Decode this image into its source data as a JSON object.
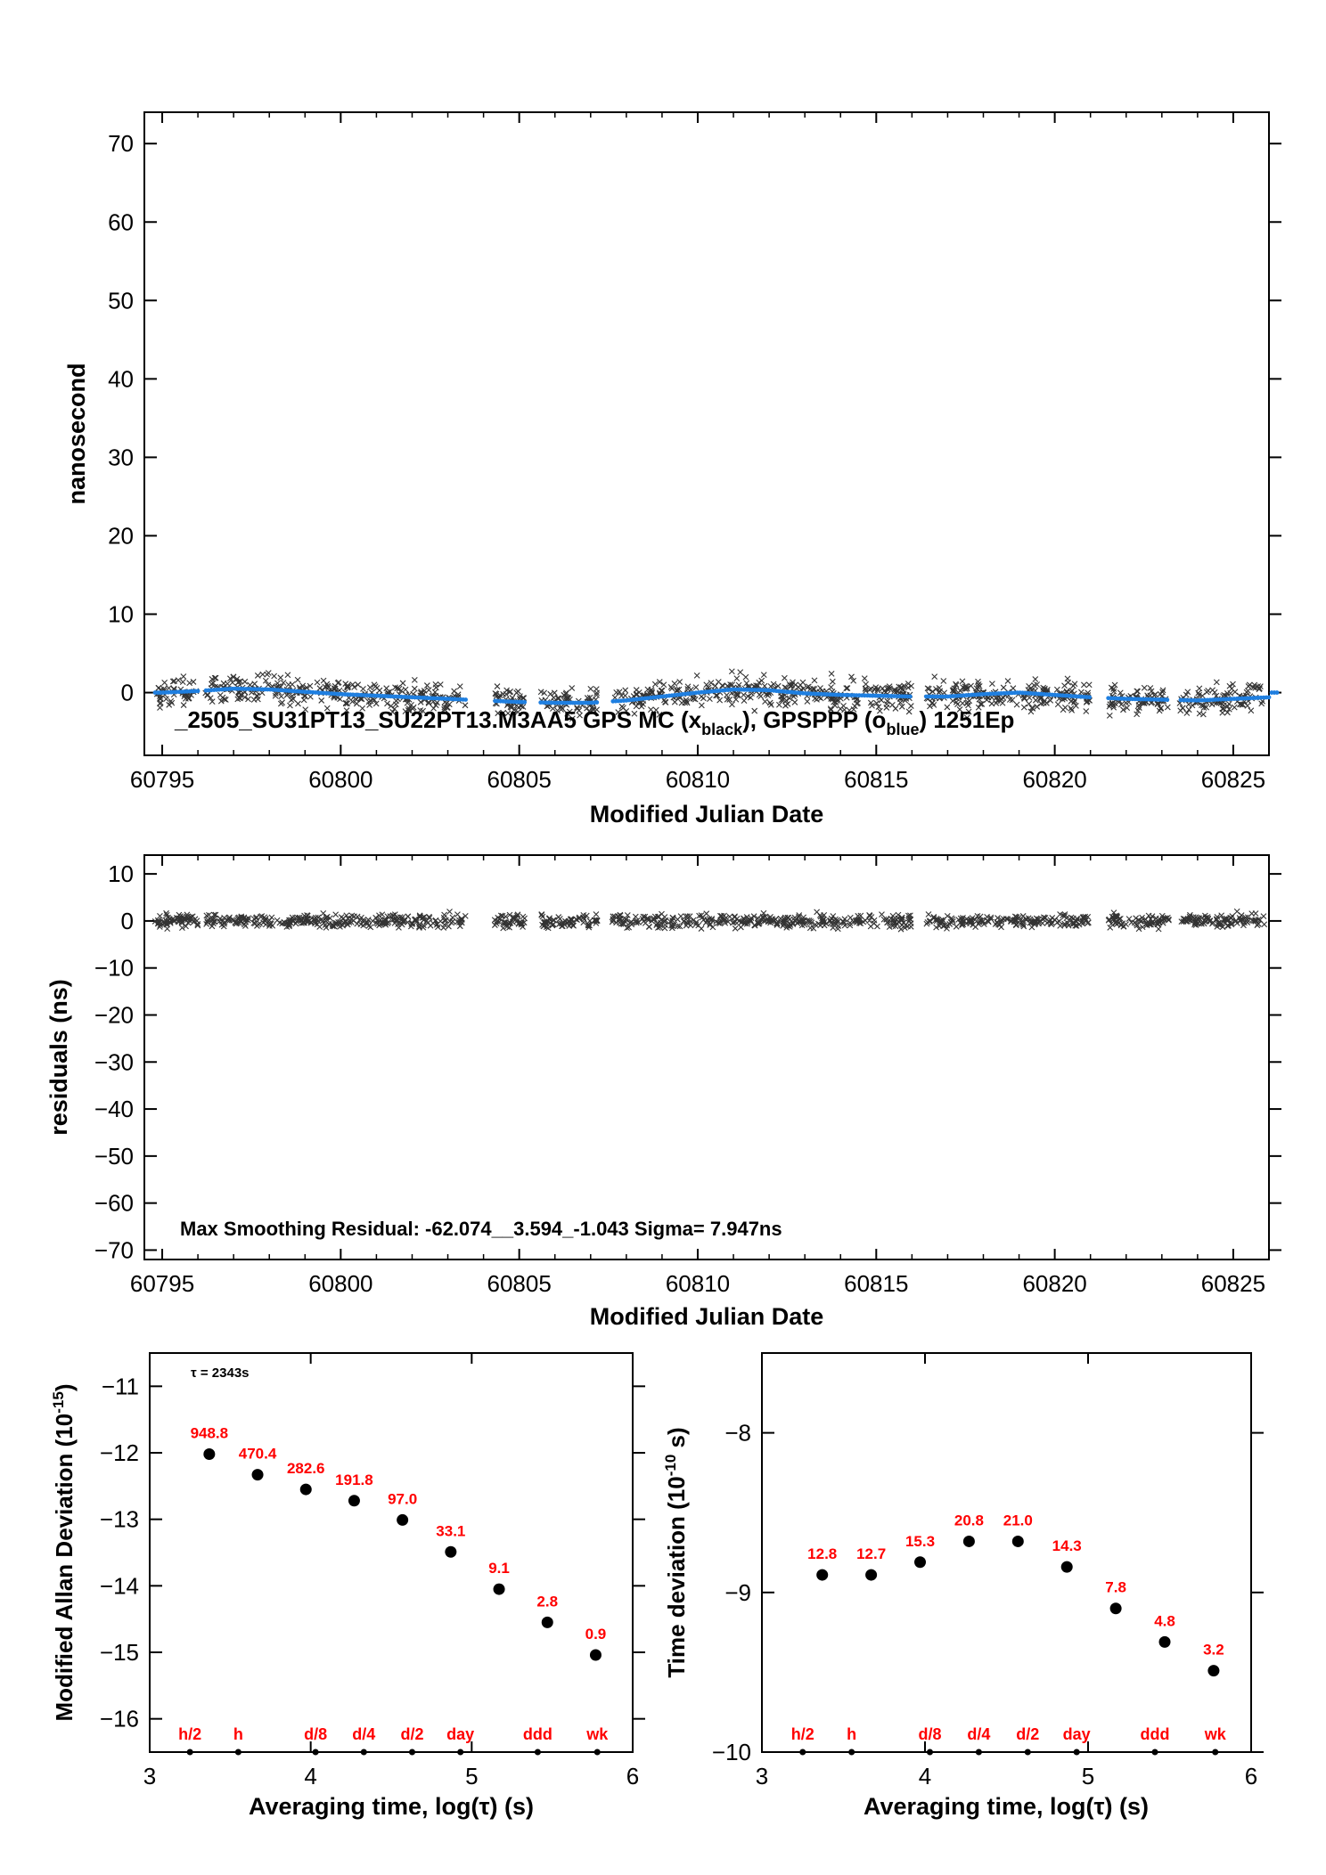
{
  "chart_data": [
    {
      "type": "scatter",
      "ylabel": "nanosecond",
      "xlabel": "Modified Julian Date",
      "xlim": [
        60794.5,
        60826
      ],
      "ylim": [
        -8,
        74
      ],
      "xticks": [
        60795,
        60800,
        60805,
        60810,
        60815,
        60820,
        60825
      ],
      "xtick_labels": [
        "60795",
        "60800",
        "60805",
        "60810",
        "60815",
        "60820",
        "60825"
      ],
      "yticks": [
        0,
        10,
        20,
        30,
        40,
        50,
        60,
        70
      ],
      "ytick_labels": [
        "0",
        "10",
        "20",
        "30",
        "40",
        "50",
        "60",
        "70"
      ],
      "annotation": {
        "main": "_2505_SU31PT13_SU22PT13.M3AA5    GPS MC (x",
        "sub1": "black",
        "mid": "),  GPSPPP (o",
        "sub2": "blue",
        "end": ")  1251Ep"
      },
      "series": [
        {
          "marker": "x",
          "color": "#000000",
          "values_by_day": "scatter of ~1251 epochs, values mostly between -3 and +4 ns"
        },
        {
          "marker": "o",
          "color": "#1f7fe0",
          "x": [
            60795,
            60796,
            60797,
            60798,
            60799,
            60800,
            60801,
            60802,
            60803,
            60804,
            60805,
            60806,
            60807,
            60808,
            60809,
            60810,
            60811,
            60812,
            60813,
            60814,
            60815,
            60816,
            60817,
            60818,
            60819,
            60820,
            60821,
            60822,
            60823,
            60824,
            60825,
            60826
          ],
          "y": [
            0.0,
            0.2,
            0.5,
            0.4,
            0.1,
            -0.2,
            -0.4,
            -0.6,
            -0.8,
            -1.0,
            -1.2,
            -1.3,
            -1.3,
            -1.0,
            -0.5,
            0.0,
            0.4,
            0.3,
            -0.1,
            -0.3,
            -0.4,
            -0.5,
            -0.5,
            -0.2,
            0.0,
            -0.3,
            -0.6,
            -0.8,
            -0.9,
            -1.0,
            -0.8,
            -0.6
          ]
        }
      ]
    },
    {
      "type": "scatter",
      "ylabel": "residuals (ns)",
      "xlabel": "Modified Julian Date",
      "xlim": [
        60794.5,
        60826
      ],
      "ylim": [
        -72,
        14
      ],
      "xticks": [
        60795,
        60800,
        60805,
        60810,
        60815,
        60820,
        60825
      ],
      "xtick_labels": [
        "60795",
        "60800",
        "60805",
        "60810",
        "60815",
        "60820",
        "60825"
      ],
      "yticks": [
        10,
        0,
        -10,
        -20,
        -30,
        -40,
        -50,
        -60,
        -70
      ],
      "ytick_labels": [
        "10",
        "0",
        "−10",
        "−20",
        "−30",
        "−40",
        "−50",
        "−60",
        "−70"
      ],
      "annotation": "Max Smoothing Residual: -62.074__3.594_-1.043  Sigma= 7.947ns",
      "series": [
        {
          "marker": "x",
          "color": "#000000",
          "values_by_day": "scatter of residuals, values mostly between -4 and +4 ns"
        }
      ]
    },
    {
      "type": "scatter",
      "ylabel": "Modified Allan Deviation (10",
      "ylabel_sup": "-15",
      "ylabel_end": ")",
      "xlabel": "Averaging time, log(τ) (s)",
      "xlim": [
        3,
        6
      ],
      "ylim": [
        -16.5,
        -10.5
      ],
      "xticks": [
        3,
        4,
        5,
        6
      ],
      "xtick_labels": [
        "3",
        "4",
        "5",
        "6"
      ],
      "yticks": [
        -11,
        -12,
        -13,
        -14,
        -15,
        -16
      ],
      "ytick_labels": [
        "−11",
        "−12",
        "−13",
        "−14",
        "−15",
        "−16"
      ],
      "tau_note": "τ = 2343s",
      "x": [
        3.37,
        3.67,
        3.97,
        4.27,
        4.57,
        4.87,
        5.17,
        5.47,
        5.77
      ],
      "y": [
        -12.02,
        -12.33,
        -12.55,
        -12.72,
        -13.01,
        -13.49,
        -14.05,
        -14.55,
        -15.04
      ],
      "point_labels": [
        "948.8",
        "470.4",
        "282.6",
        "191.8",
        "97.0",
        "33.1",
        "9.1",
        "2.8",
        "0.9"
      ],
      "markers": {
        "x": [
          3.25,
          3.55,
          4.03,
          4.33,
          4.63,
          4.93,
          5.41,
          5.78
        ],
        "labels": [
          "h/2",
          "h",
          "d/8",
          "d/4",
          "d/2",
          "day",
          "ddd",
          "wk"
        ]
      }
    },
    {
      "type": "scatter",
      "ylabel": "Time deviation (10",
      "ylabel_sup": "-10",
      "ylabel_end": " s)",
      "xlabel": "Averaging time, log(τ) (s)",
      "xlim": [
        3,
        6
      ],
      "ylim": [
        -10,
        -7.5
      ],
      "xticks": [
        3,
        4,
        5,
        6
      ],
      "xtick_labels": [
        "3",
        "4",
        "5",
        "6"
      ],
      "yticks": [
        -8,
        -9,
        -10
      ],
      "ytick_labels": [
        "−8",
        "−9",
        "−10"
      ],
      "x": [
        3.37,
        3.67,
        3.97,
        4.27,
        4.57,
        4.87,
        5.17,
        5.47,
        5.77
      ],
      "y": [
        -8.89,
        -8.89,
        -8.81,
        -8.68,
        -8.68,
        -8.84,
        -9.1,
        -9.31,
        -9.49
      ],
      "point_labels": [
        "12.8",
        "12.7",
        "15.3",
        "20.8",
        "21.0",
        "14.3",
        "7.8",
        "4.8",
        "3.2"
      ],
      "markers": {
        "x": [
          3.25,
          3.55,
          4.03,
          4.33,
          4.63,
          4.93,
          5.41,
          5.78
        ],
        "labels": [
          "h/2",
          "h",
          "d/8",
          "d/4",
          "d/2",
          "day",
          "ddd",
          "wk"
        ]
      }
    }
  ]
}
